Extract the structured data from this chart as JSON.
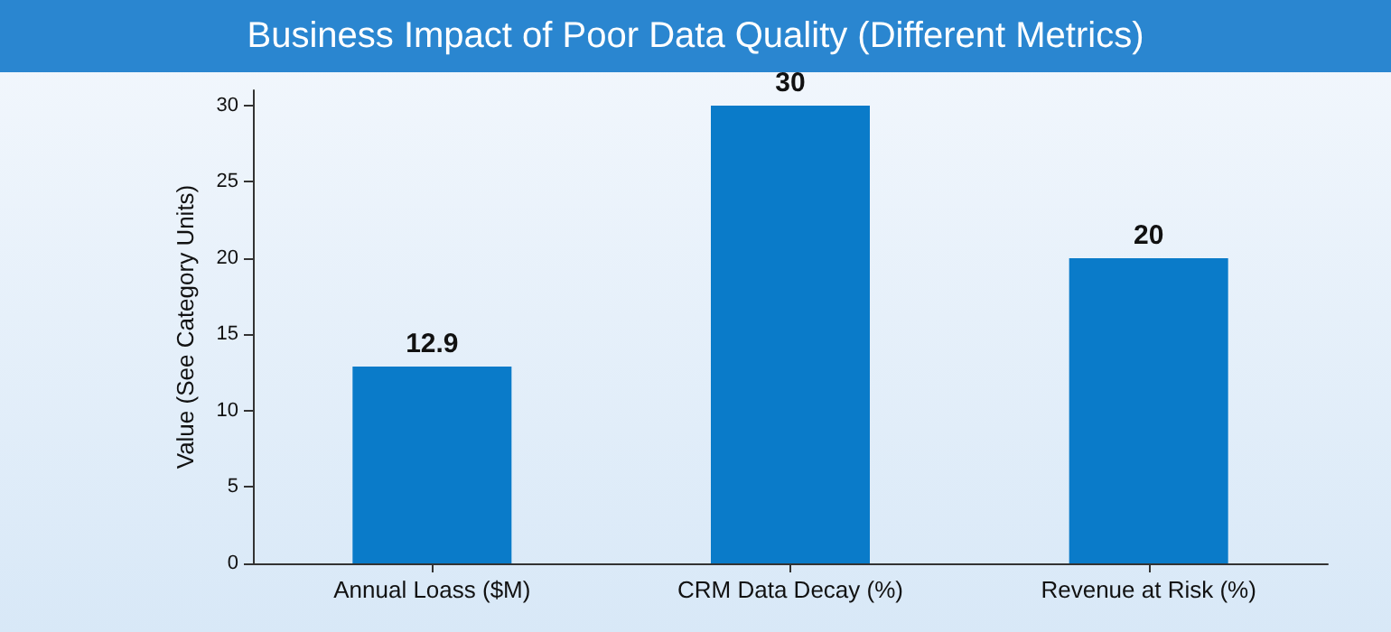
{
  "chart_data": {
    "type": "bar",
    "title": "Business Impact of Poor Data Quality (Different Metrics)",
    "ylabel": "Value (See Category Units)",
    "categories": [
      "Annual Loass ($M)",
      "CRM Data Decay (%)",
      "Revenue at Risk (%)"
    ],
    "values": [
      12.9,
      30,
      20
    ],
    "color": "#0a7bc9",
    "ylim": [
      0,
      31
    ],
    "yticks": [
      0,
      5,
      10,
      15,
      20,
      25,
      30
    ],
    "grid": false,
    "data_labels": true
  }
}
